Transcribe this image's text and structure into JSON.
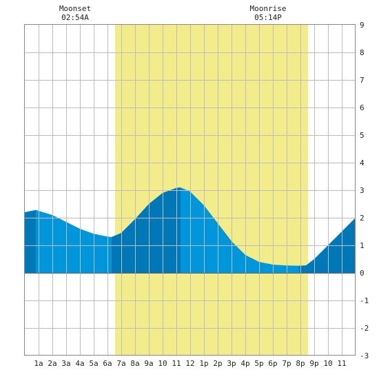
{
  "chart_data": {
    "type": "area",
    "title": "",
    "xlabel": "",
    "ylabel": "",
    "x_unit": "hour",
    "xlim": [
      0,
      24
    ],
    "ylim": [
      -3,
      9
    ],
    "y_ticks": [
      -3,
      -2,
      -1,
      0,
      1,
      2,
      3,
      4,
      5,
      6,
      7,
      8,
      9
    ],
    "x_ticks": [
      {
        "x": 1,
        "label": "1a"
      },
      {
        "x": 2,
        "label": "2a"
      },
      {
        "x": 3,
        "label": "3a"
      },
      {
        "x": 4,
        "label": "4a"
      },
      {
        "x": 5,
        "label": "5a"
      },
      {
        "x": 6,
        "label": "6a"
      },
      {
        "x": 7,
        "label": "7a"
      },
      {
        "x": 8,
        "label": "8a"
      },
      {
        "x": 9,
        "label": "9a"
      },
      {
        "x": 10,
        "label": "10"
      },
      {
        "x": 11,
        "label": "11"
      },
      {
        "x": 12,
        "label": "12"
      },
      {
        "x": 13,
        "label": "1p"
      },
      {
        "x": 14,
        "label": "2p"
      },
      {
        "x": 15,
        "label": "3p"
      },
      {
        "x": 16,
        "label": "4p"
      },
      {
        "x": 17,
        "label": "5p"
      },
      {
        "x": 18,
        "label": "6p"
      },
      {
        "x": 19,
        "label": "7p"
      },
      {
        "x": 20,
        "label": "8p"
      },
      {
        "x": 21,
        "label": "9p"
      },
      {
        "x": 22,
        "label": "10"
      },
      {
        "x": 23,
        "label": "11"
      }
    ],
    "grid": true,
    "daylight": {
      "start": 6.55,
      "end": 20.55,
      "color": "#f2ec8a"
    },
    "moon_events": [
      {
        "label": "Moonset",
        "time": "02:54A",
        "x": 3.65
      },
      {
        "label": "Moonrise",
        "time": "05:14P",
        "x": 17.65
      }
    ],
    "series": [
      {
        "x": [
          0,
          0.8,
          2,
          3,
          4,
          5,
          6,
          6.3,
          7,
          8,
          9,
          10,
          11,
          11.3,
          12,
          13,
          14,
          15,
          16,
          17,
          18,
          19,
          19.9,
          20.4,
          21,
          22,
          23,
          24
        ],
        "values": [
          2.2,
          2.28,
          2.1,
          1.85,
          1.6,
          1.42,
          1.32,
          1.3,
          1.45,
          1.95,
          2.5,
          2.9,
          3.08,
          3.1,
          2.95,
          2.45,
          1.8,
          1.15,
          0.65,
          0.4,
          0.3,
          0.27,
          0.26,
          0.27,
          0.5,
          1.0,
          1.5,
          2.0
        ]
      }
    ],
    "shading": {
      "base_color": "#0096dc",
      "dark_color": "#0078b8",
      "dark_bands": [
        [
          0,
          0.8
        ],
        [
          6.3,
          11.3
        ],
        [
          19.9,
          24
        ]
      ]
    }
  }
}
